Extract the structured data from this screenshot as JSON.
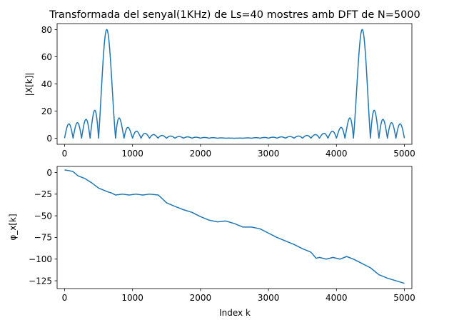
{
  "chart_data": [
    {
      "type": "line",
      "title": "Transformada del senyal(1KHz) de Ls=40 mostres amb DFT de N=5000",
      "xlabel": "",
      "ylabel": "|X[k]|",
      "xlim": [
        -110,
        5110
      ],
      "ylim": [
        -4.5,
        84.5
      ],
      "xticks": [
        0,
        1000,
        2000,
        3000,
        4000,
        5000
      ],
      "xtick_labels": [
        "0",
        "1000",
        "2000",
        "3000",
        "4000",
        "5000"
      ],
      "yticks": [
        0,
        20,
        40,
        60,
        80
      ],
      "ytick_labels": [
        "0",
        "20",
        "40",
        "60",
        "80"
      ],
      "grid": false,
      "series": [
        {
          "color": "#1f77b4",
          "signal": {
            "N": 5000,
            "L": 40,
            "peaks": [
              625,
              4375
            ],
            "peak_value": 80
          }
        }
      ]
    },
    {
      "type": "line",
      "title": "",
      "xlabel": "Index k",
      "ylabel": "φ_x[k]",
      "xlim": [
        -110,
        5110
      ],
      "ylim": [
        -134,
        7
      ],
      "xticks": [
        0,
        1000,
        2000,
        3000,
        4000,
        5000
      ],
      "xtick_labels": [
        "0",
        "1000",
        "2000",
        "3000",
        "4000",
        "5000"
      ],
      "yticks": [
        0,
        -25,
        -50,
        -75,
        -100,
        -125
      ],
      "ytick_labels": [
        "0",
        "−25",
        "−50",
        "−75",
        "−100",
        "−125"
      ],
      "grid": false,
      "series": [
        {
          "color": "#1f77b4",
          "points": [
            [
              0,
              3
            ],
            [
              75,
              2
            ],
            [
              125,
              1
            ],
            [
              200,
              -4
            ],
            [
              300,
              -7
            ],
            [
              400,
              -12
            ],
            [
              500,
              -18
            ],
            [
              625,
              -22
            ],
            [
              700,
              -24
            ],
            [
              750,
              -26
            ],
            [
              850,
              -25
            ],
            [
              950,
              -26
            ],
            [
              1050,
              -25
            ],
            [
              1150,
              -26
            ],
            [
              1250,
              -25
            ],
            [
              1380,
              -26
            ],
            [
              1500,
              -35
            ],
            [
              1620,
              -39
            ],
            [
              1750,
              -43
            ],
            [
              1875,
              -46
            ],
            [
              2000,
              -51
            ],
            [
              2125,
              -55
            ],
            [
              2250,
              -57
            ],
            [
              2370,
              -56
            ],
            [
              2500,
              -59
            ],
            [
              2625,
              -63
            ],
            [
              2750,
              -63
            ],
            [
              2875,
              -65
            ],
            [
              3000,
              -70
            ],
            [
              3125,
              -75
            ],
            [
              3250,
              -79
            ],
            [
              3375,
              -83
            ],
            [
              3500,
              -88
            ],
            [
              3625,
              -92
            ],
            [
              3700,
              -99
            ],
            [
              3750,
              -98
            ],
            [
              3850,
              -100
            ],
            [
              3950,
              -98
            ],
            [
              4050,
              -100
            ],
            [
              4150,
              -97
            ],
            [
              4250,
              -100
            ],
            [
              4375,
              -105
            ],
            [
              4500,
              -110
            ],
            [
              4625,
              -118
            ],
            [
              4750,
              -122
            ],
            [
              4875,
              -125
            ],
            [
              5000,
              -128
            ]
          ]
        }
      ]
    }
  ]
}
